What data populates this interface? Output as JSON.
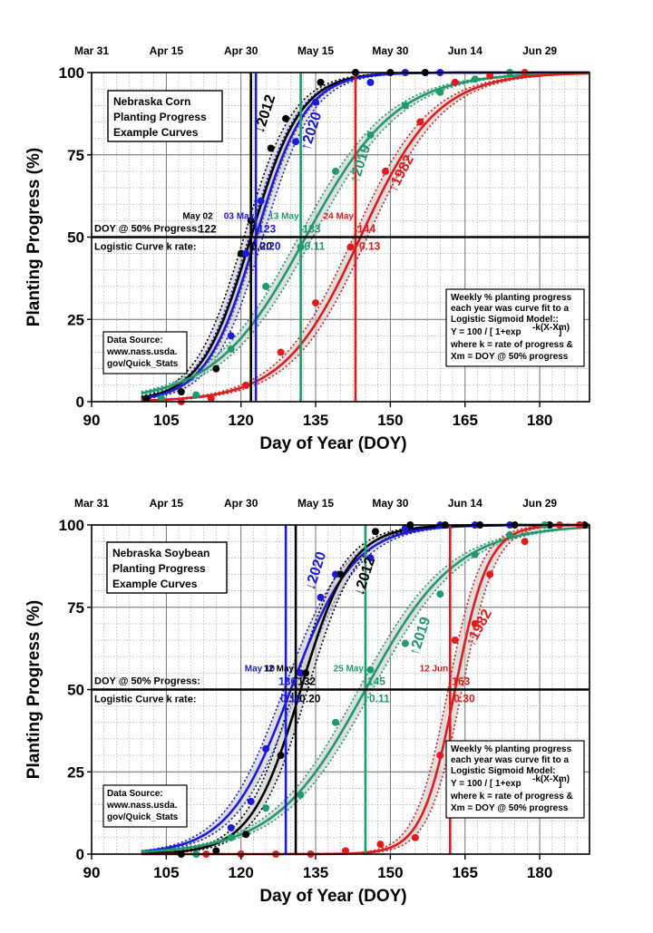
{
  "chart_data": [
    {
      "type": "line",
      "title_lines": [
        "Nebraska Corn",
        "Planting Progress",
        "Example Curves"
      ],
      "xlabel": "Day of Year (DOY)",
      "ylabel": "Planting Progress (%)",
      "xlim": [
        90,
        190
      ],
      "ylim": [
        0,
        100
      ],
      "x_ticks": [
        "90",
        "105",
        "120",
        "135",
        "150",
        "165",
        "180"
      ],
      "y_ticks": [
        "0",
        "25",
        "50",
        "75",
        "100"
      ],
      "top_axis_dates": [
        "Mar 31",
        "Apr 15",
        "Apr 30",
        "May 15",
        "May 30",
        "Jun 14",
        "Jun 29"
      ],
      "doy50_label": "DOY @ 50% Progress:",
      "krate_label": "Logistic Curve k rate:",
      "source_lines": [
        "Data Source:",
        "www.nass.usda.",
        "gov/Quick_Stats"
      ],
      "model_lines": [
        "Weekly % planting progress",
        "each year was curve fit to a",
        "Logistic Sigmoid Model::",
        "Y = 100 / [ 1+exp",
        "-k(X-Xm)",
        "]",
        "where k = rate of progress & ",
        "Xm = DOY @ 50% progress"
      ],
      "series": [
        {
          "name": "2012",
          "curve_label": "↓2012",
          "color": "#000000",
          "xm": 122,
          "k": 0.2,
          "k_label": "0.20",
          "date_label": "May 02",
          "doy_label": "122",
          "vline": 122,
          "points": [
            [
              101,
              1
            ],
            [
              108,
              3
            ],
            [
              115,
              10
            ],
            [
              120,
              45
            ],
            [
              122,
              55
            ],
            [
              126,
              77
            ],
            [
              129,
              86
            ],
            [
              136,
              97
            ],
            [
              143,
              100
            ],
            [
              150,
              100
            ],
            [
              157,
              100
            ]
          ]
        },
        {
          "name": "2020",
          "curve_label": "↑2020",
          "color": "#1a1adc",
          "xm": 123,
          "k": 0.2,
          "k_label": "0.20",
          "date_label": "03 May",
          "doy_label": "123",
          "vline": 123,
          "points": [
            [
              104,
              1
            ],
            [
              111,
              2
            ],
            [
              118,
              20
            ],
            [
              121,
              45
            ],
            [
              124,
              61
            ],
            [
              131,
              79
            ],
            [
              135,
              91
            ],
            [
              146,
              97
            ],
            [
              153,
              100
            ],
            [
              160,
              100
            ]
          ]
        },
        {
          "name": "2019",
          "curve_label": "↑2019",
          "color": "#1e9a6c",
          "xm": 133,
          "k": 0.11,
          "k_label": "0.11",
          "date_label": "13 May",
          "doy_label": "133",
          "vline": 132,
          "points": [
            [
              104,
              1
            ],
            [
              111,
              2
            ],
            [
              118,
              16
            ],
            [
              125,
              35
            ],
            [
              132,
              47
            ],
            [
              139,
              70
            ],
            [
              146,
              81
            ],
            [
              153,
              90
            ],
            [
              160,
              94
            ],
            [
              167,
              98
            ],
            [
              174,
              100
            ]
          ]
        },
        {
          "name": "1982",
          "curve_label": "↑1982",
          "color": "#e11a1a",
          "xm": 144,
          "k": 0.13,
          "k_label": "0.13",
          "date_label": "24 May",
          "doy_label": "144",
          "vline": 143,
          "points": [
            [
              108,
              0
            ],
            [
              114,
              1
            ],
            [
              121,
              5
            ],
            [
              128,
              15
            ],
            [
              135,
              30
            ],
            [
              142,
              47
            ],
            [
              149,
              70
            ],
            [
              156,
              85
            ],
            [
              163,
              97
            ],
            [
              170,
              99
            ],
            [
              177,
              100
            ]
          ]
        }
      ]
    },
    {
      "type": "line",
      "title_lines": [
        "Nebraska Soybean",
        "Planting Progress",
        "Example Curves"
      ],
      "xlabel": "Day of Year (DOY)",
      "ylabel": "Planting Progress (%)",
      "xlim": [
        90,
        190
      ],
      "ylim": [
        0,
        100
      ],
      "x_ticks": [
        "90",
        "105",
        "120",
        "135",
        "150",
        "165",
        "180"
      ],
      "y_ticks": [
        "0",
        "25",
        "50",
        "75",
        "100"
      ],
      "top_axis_dates": [
        "Mar 31",
        "Apr 15",
        "Apr 30",
        "May 15",
        "May 30",
        "Jun 14",
        "Jun 29"
      ],
      "doy50_label": "DOY @ 50% Progress:",
      "krate_label": "Logistic Curve k rate:",
      "source_lines": [
        "Data Source:",
        "www.nass.usda.",
        "gov/Quick_Stats"
      ],
      "model_lines": [
        "Weekly % planting progress",
        "each year was curve fit to a",
        "Logistic Sigmoid Model:",
        "Y = 100 / [ 1+exp",
        "-k(X-Xm)",
        "]",
        "where k = rate of progress & ",
        "Xm = DOY @ 50% progress"
      ],
      "series": [
        {
          "name": "2020",
          "curve_label": "↓2020",
          "color": "#1a1adc",
          "xm": 130,
          "k": 0.16,
          "k_label": "0.16",
          "date_label": "May 10",
          "doy_label": "130",
          "vline": 129,
          "points": [
            [
              111,
              0
            ],
            [
              118,
              8
            ],
            [
              122,
              16
            ],
            [
              125,
              32
            ],
            [
              132,
              55
            ],
            [
              136,
              78
            ],
            [
              139,
              85
            ],
            [
              146,
              90
            ],
            [
              153,
              99
            ],
            [
              160,
              100
            ],
            [
              167,
              100
            ],
            [
              174,
              100
            ]
          ]
        },
        {
          "name": "2012",
          "curve_label": "↓2012",
          "color": "#000000",
          "xm": 132,
          "k": 0.2,
          "k_label": "0.20",
          "date_label": "12 May",
          "doy_label": "132",
          "vline": 131,
          "points": [
            [
              108,
              0
            ],
            [
              115,
              1
            ],
            [
              121,
              6
            ],
            [
              128,
              30
            ],
            [
              133,
              55
            ],
            [
              140,
              85
            ],
            [
              147,
              98
            ],
            [
              154,
              100
            ],
            [
              161,
              100
            ],
            [
              168,
              100
            ],
            [
              175,
              100
            ],
            [
              182,
              100
            ],
            [
              189,
              100
            ]
          ]
        },
        {
          "name": "2019",
          "curve_label": "↑2019",
          "color": "#1e9a6c",
          "xm": 145,
          "k": 0.11,
          "k_label": "0.11",
          "date_label": "25 May",
          "doy_label": "145",
          "vline": 145,
          "points": [
            [
              111,
              0
            ],
            [
              118,
              5
            ],
            [
              125,
              14
            ],
            [
              132,
              18
            ],
            [
              139,
              40
            ],
            [
              146,
              56
            ],
            [
              153,
              64
            ],
            [
              160,
              79
            ],
            [
              167,
              91
            ],
            [
              174,
              97
            ],
            [
              181,
              100
            ],
            [
              188,
              100
            ]
          ]
        },
        {
          "name": "1982",
          "curve_label": "↑1982",
          "color": "#e11a1a",
          "xm": 163,
          "k": 0.3,
          "k_label": "0.30",
          "date_label": "12 Jun",
          "doy_label": "163",
          "vline": 162,
          "points": [
            [
              113,
              0
            ],
            [
              120,
              0
            ],
            [
              127,
              0
            ],
            [
              134,
              0
            ],
            [
              141,
              1
            ],
            [
              148,
              3
            ],
            [
              155,
              5
            ],
            [
              160,
              30
            ],
            [
              163,
              65
            ],
            [
              167,
              70
            ],
            [
              170,
              85
            ],
            [
              177,
              95
            ],
            [
              184,
              100
            ],
            [
              188,
              100
            ]
          ]
        }
      ]
    }
  ]
}
